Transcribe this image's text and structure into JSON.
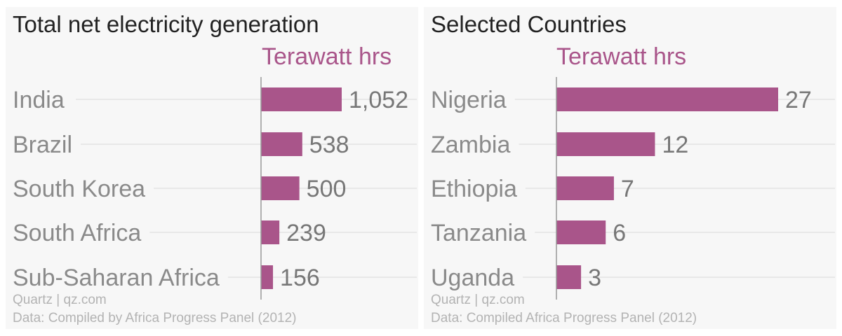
{
  "chart_data": [
    {
      "type": "bar",
      "orientation": "horizontal",
      "title": "Total net electricity generation",
      "unit_label": "Terawatt hrs",
      "categories": [
        "India",
        "Brazil",
        "South Korea",
        "South Africa",
        "Sub-Saharan Africa"
      ],
      "values": [
        1052,
        538,
        500,
        239,
        156
      ],
      "value_labels": [
        "1,052",
        "538",
        "500",
        "239",
        "156"
      ],
      "xlim": [
        0,
        1052
      ],
      "grid": true,
      "bar_color": "#a9558a",
      "credit": "Quartz | qz.com",
      "source": "Data: Compiled by Africa Progress Panel (2012)"
    },
    {
      "type": "bar",
      "orientation": "horizontal",
      "title": "Selected Countries",
      "unit_label": "Terawatt hrs",
      "categories": [
        "Nigeria",
        "Zambia",
        "Ethiopia",
        "Tanzania",
        "Uganda"
      ],
      "values": [
        27,
        12,
        7,
        6,
        3
      ],
      "value_labels": [
        "27",
        "12",
        "7",
        "6",
        "3"
      ],
      "xlim": [
        0,
        27
      ],
      "grid": true,
      "bar_color": "#a9558a",
      "credit": "Quartz | qz.com",
      "source": "Data: Compiled Africa Progress Panel (2012)"
    }
  ]
}
